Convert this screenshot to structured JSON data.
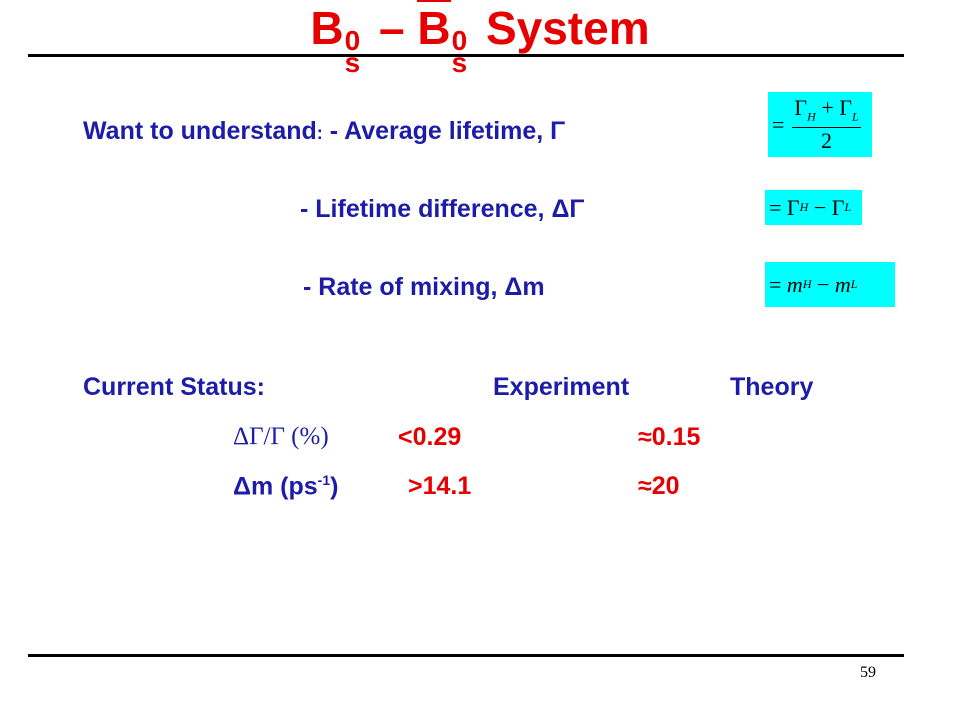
{
  "title": {
    "base_1": "B",
    "sup_1": "0",
    "sub_1": "s",
    "dash": "–",
    "base_2": "B",
    "sup_2": "0",
    "sub_2": "s",
    "rest": "System"
  },
  "goals": {
    "lead": "Want to understand",
    "colon": ":",
    "items": [
      {
        "text": "- Average lifetime, Γ",
        "formula": [
          "=",
          "Γ",
          "H",
          "+",
          "Γ",
          "L",
          "2"
        ]
      },
      {
        "text": "- Lifetime difference, ΔΓ",
        "formula": [
          "=",
          "Γ",
          "H",
          "−",
          "Γ",
          "L"
        ]
      },
      {
        "text": "- Rate of mixing, Δm",
        "formula": [
          "=",
          "m",
          "H",
          "−",
          "m",
          "L"
        ]
      }
    ]
  },
  "status": {
    "label": "Current Status:",
    "columns": [
      "Experiment",
      "Theory"
    ],
    "rows": [
      {
        "quantity": [
          "ΔΓ/Γ (%)"
        ],
        "experiment": "<0.29",
        "theory": "≈0.15"
      },
      {
        "quantity": [
          "Δm (ps",
          "-1",
          ")"
        ],
        "experiment": ">14.1",
        "theory": "≈20"
      }
    ]
  },
  "page_number": "59"
}
